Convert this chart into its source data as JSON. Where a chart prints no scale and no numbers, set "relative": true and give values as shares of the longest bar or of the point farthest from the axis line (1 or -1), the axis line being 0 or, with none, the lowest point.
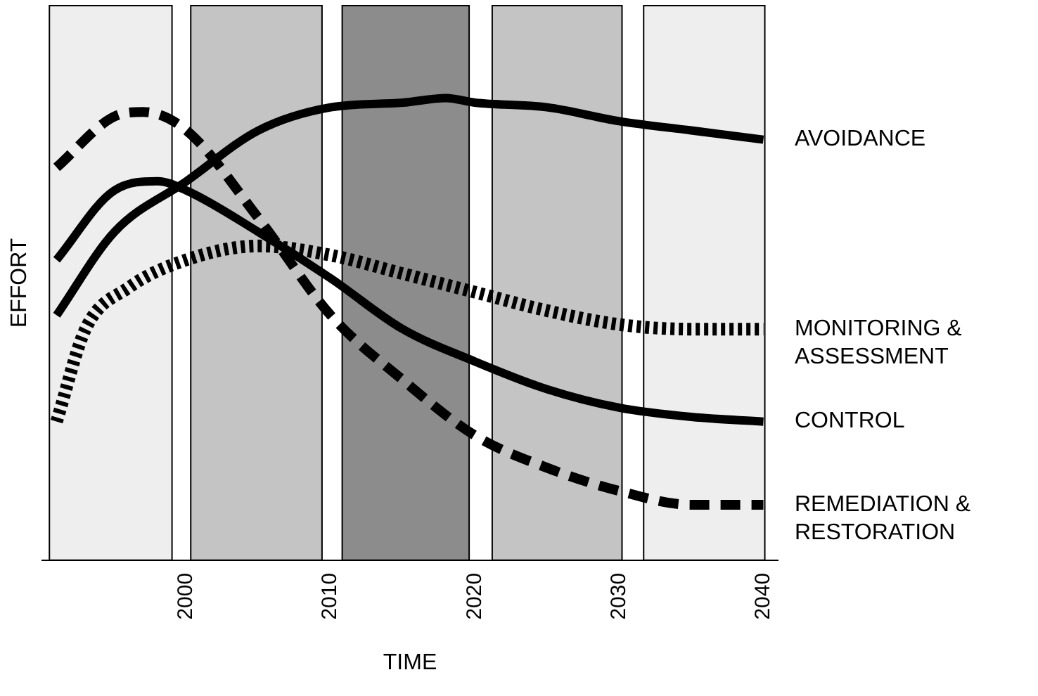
{
  "chart_data": {
    "type": "line",
    "relative": true,
    "xlabel": "TIME",
    "ylabel": "EFFORT",
    "xlim": [
      1990,
      2041
    ],
    "xticks": [
      2000,
      2010,
      2020,
      2030,
      2040
    ],
    "grid": false,
    "legend": false,
    "bands": [
      {
        "axis": "x",
        "from": 1990.5,
        "to": 1999,
        "color": "#eeeeee"
      },
      {
        "axis": "x",
        "from": 2000.3,
        "to": 2009.4,
        "color": "#c4c4c4"
      },
      {
        "axis": "x",
        "from": 2010.8,
        "to": 2019.6,
        "color": "#8c8c8c"
      },
      {
        "axis": "x",
        "from": 2021.2,
        "to": 2030.2,
        "color": "#c4c4c4"
      },
      {
        "axis": "x",
        "from": 2031.7,
        "to": 2040.1,
        "color": "#eeeeee"
      }
    ],
    "series": [
      {
        "name": "AVOIDANCE",
        "color": "#000000",
        "line_style": "solid",
        "x": [
          1991,
          1995,
          2000,
          2005,
          2010,
          2015,
          2018,
          2020,
          2025,
          2030,
          2035,
          2040
        ],
        "values": [
          0.53,
          0.71,
          0.82,
          0.93,
          0.98,
          0.99,
          1,
          0.99,
          0.98,
          0.95,
          0.93,
          0.91
        ]
      },
      {
        "name": "MONITORING & ASSESSMENT",
        "color": "#000000",
        "line_style": "dotted",
        "x": [
          1991,
          1993,
          1996,
          2000,
          2005,
          2010,
          2015,
          2020,
          2025,
          2030,
          2035,
          2040
        ],
        "values": [
          0.3,
          0.5,
          0.59,
          0.65,
          0.68,
          0.66,
          0.62,
          0.58,
          0.54,
          0.51,
          0.5,
          0.5
        ]
      },
      {
        "name": "CONTROL",
        "color": "#000000",
        "line_style": "solid",
        "x": [
          1991,
          1995,
          1998,
          2000,
          2005,
          2010,
          2015,
          2020,
          2025,
          2030,
          2035,
          2040
        ],
        "values": [
          0.65,
          0.8,
          0.82,
          0.8,
          0.71,
          0.61,
          0.5,
          0.43,
          0.37,
          0.33,
          0.31,
          0.3
        ]
      },
      {
        "name": "REMEDIATION & RESTORATION",
        "color": "#000000",
        "line_style": "dashed",
        "x": [
          1991,
          1995,
          1997,
          2000,
          2005,
          2010,
          2015,
          2020,
          2025,
          2030,
          2035,
          2040
        ],
        "values": [
          0.85,
          0.96,
          0.97,
          0.93,
          0.74,
          0.53,
          0.39,
          0.27,
          0.2,
          0.15,
          0.12,
          0.12
        ]
      }
    ]
  }
}
